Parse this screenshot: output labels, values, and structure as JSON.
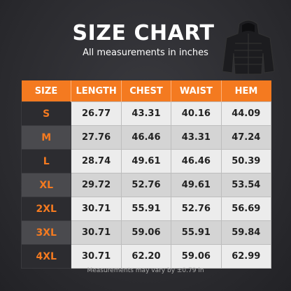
{
  "header": {
    "title": "SIZE CHART",
    "subtitle": "All measurements in inches"
  },
  "table": {
    "columns": [
      "SIZE",
      "LENGTH",
      "CHEST",
      "WAIST",
      "HEM"
    ],
    "rows": [
      [
        "S",
        "26.77",
        "43.31",
        "40.16",
        "44.09"
      ],
      [
        "M",
        "27.76",
        "46.46",
        "43.31",
        "47.24"
      ],
      [
        "L",
        "28.74",
        "49.61",
        "46.46",
        "50.39"
      ],
      [
        "XL",
        "29.72",
        "52.76",
        "49.61",
        "53.54"
      ],
      [
        "2XL",
        "30.71",
        "55.91",
        "52.76",
        "56.69"
      ],
      [
        "3XL",
        "30.71",
        "59.06",
        "55.91",
        "59.84"
      ],
      [
        "4XL",
        "30.71",
        "62.20",
        "59.06",
        "62.99"
      ]
    ]
  },
  "footnote": "Measurements may vary by ±0.79 in"
}
